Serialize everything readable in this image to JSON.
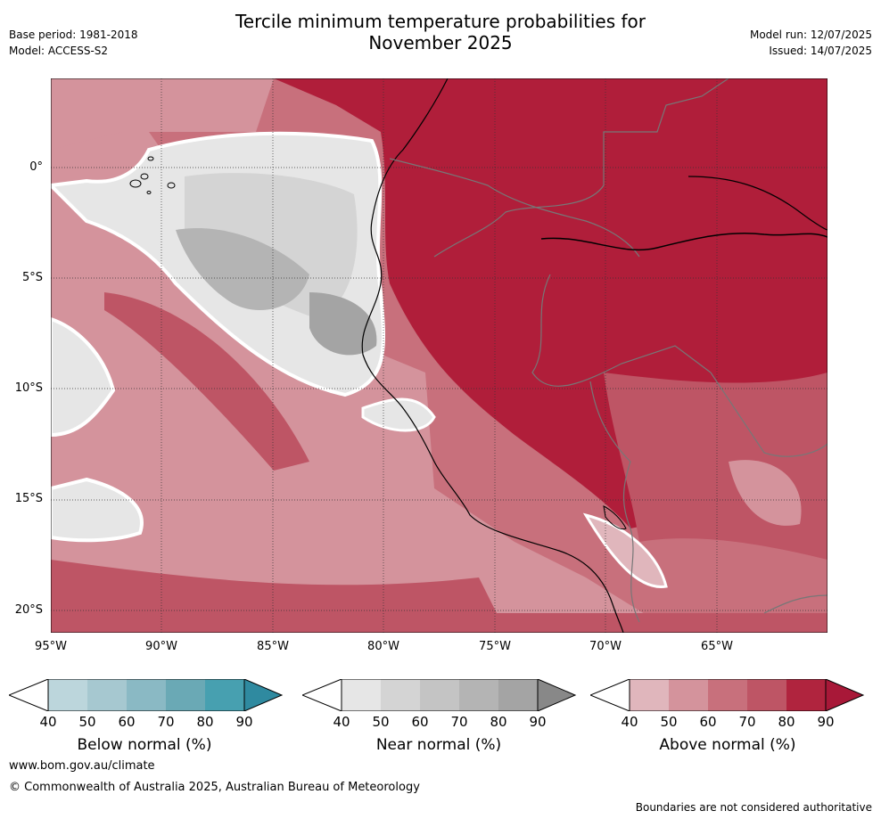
{
  "header": {
    "title_line1": "Tercile minimum temperature probabilities for",
    "title_line2": "November 2025",
    "base_period": "Base period: 1981-2018",
    "model": "Model: ACCESS-S2",
    "model_run": "Model run: 12/07/2025",
    "issued": "Issued: 14/07/2025"
  },
  "map": {
    "lat_labels": [
      "0°",
      "5°S",
      "10°S",
      "15°S",
      "20°S"
    ],
    "lon_labels": [
      "95°W",
      "90°W",
      "85°W",
      "80°W",
      "75°W",
      "70°W",
      "65°W"
    ],
    "lon_range": [
      -95,
      -60
    ],
    "lat_range": [
      -21,
      4
    ]
  },
  "colorbars": [
    {
      "title": "Below normal (%)",
      "ticks": [
        "40",
        "50",
        "60",
        "70",
        "80",
        "90"
      ],
      "colors": [
        "#bcd6dc",
        "#a6c8d0",
        "#8ab9c4",
        "#6aa9b5",
        "#47a0b0",
        "#2f8aa0"
      ]
    },
    {
      "title": "Near normal (%)",
      "ticks": [
        "40",
        "50",
        "60",
        "70",
        "80",
        "90"
      ],
      "colors": [
        "#e6e6e6",
        "#d4d4d4",
        "#c4c4c4",
        "#b4b4b4",
        "#a4a4a4",
        "#888888"
      ]
    },
    {
      "title": "Above normal (%)",
      "ticks": [
        "40",
        "50",
        "60",
        "70",
        "80",
        "90"
      ],
      "colors": [
        "#e0b6bc",
        "#d4939c",
        "#c8707c",
        "#be5565",
        "#b0243e",
        "#a81838"
      ]
    }
  ],
  "footer": {
    "url": "www.bom.gov.au/climate",
    "copyright": "© Commonwealth of Australia 2025, Australian Bureau of Meteorology",
    "disclaimer": "Boundaries are not considered authoritative"
  }
}
